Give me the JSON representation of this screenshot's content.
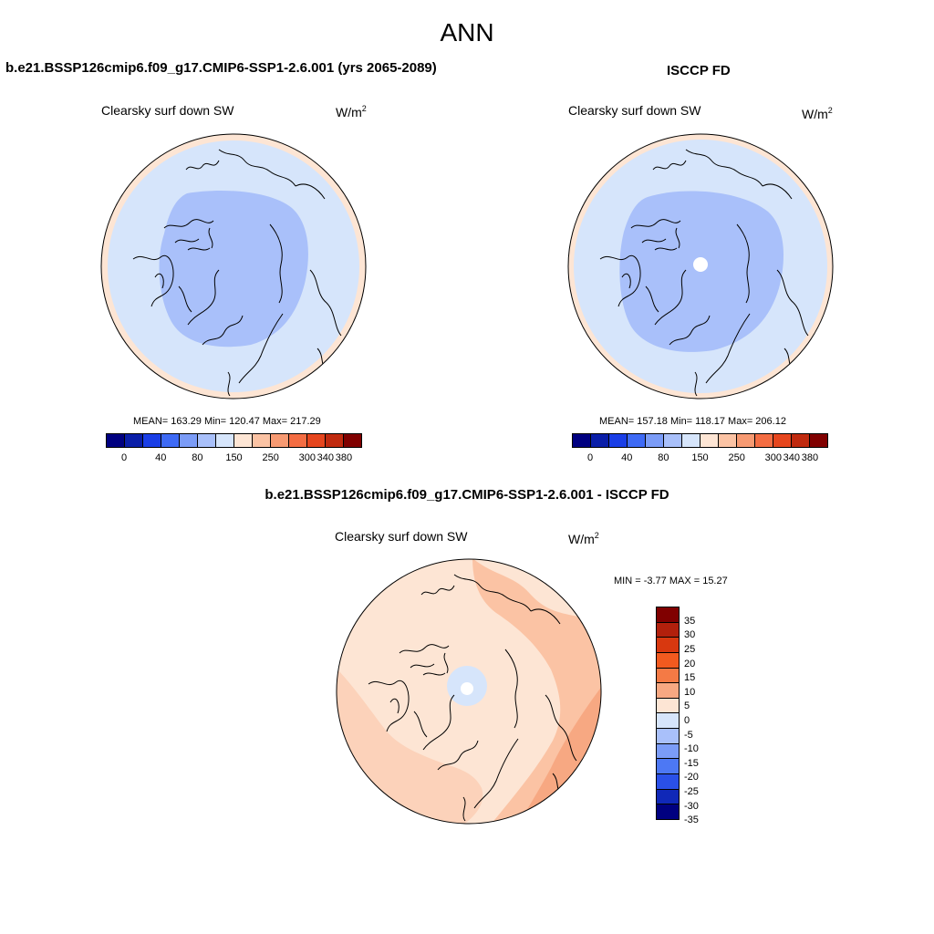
{
  "page": {
    "title": "ANN"
  },
  "colors": {
    "abs_levels": [
      "#000080",
      "#0a1ea8",
      "#1a3ee6",
      "#3e6af5",
      "#7b9cf7",
      "#a9c0fa",
      "#d6e5fb",
      "#fde5d4",
      "#fbc3a4",
      "#f79a72",
      "#f46d43",
      "#e6461e",
      "#c02a0f",
      "#800000"
    ],
    "diff_levels": [
      "#800000",
      "#b2200c",
      "#d8380f",
      "#f25a1f",
      "#f47a45",
      "#f7a882",
      "#fde5d4",
      "#d6e5fb",
      "#a9c0fa",
      "#7b9cf7",
      "#4d78f4",
      "#2a50e8",
      "#1028b8",
      "#000080"
    ]
  },
  "panels": {
    "model": {
      "title": "b.e21.BSSP126cmip6.f09_g17.CMIP6-SSP1-2.6.001 (yrs 2065-2089)",
      "variable": "Clearsky surf down SW",
      "unit_base": "W/m",
      "unit_exp": "2",
      "stats": "MEAN= 163.29  Min= 120.47  Max= 217.29"
    },
    "obs": {
      "title": "ISCCP FD",
      "variable": "Clearsky surf down SW",
      "unit_base": "W/m",
      "unit_exp": "2",
      "stats": "MEAN= 157.18  Min= 118.17  Max= 206.12"
    },
    "diff": {
      "title": "b.e21.BSSP126cmip6.f09_g17.CMIP6-SSP1-2.6.001 - ISCCP FD",
      "variable": "Clearsky surf down SW",
      "unit_base": "W/m",
      "unit_exp": "2",
      "stats": "MIN =  -3.77 MAX =  15.27"
    }
  },
  "colorbars": {
    "abs_ticks": [
      "0",
      "40",
      "80",
      "150",
      "250",
      "300",
      "340",
      "380"
    ],
    "diff_ticks": [
      "35",
      "30",
      "25",
      "20",
      "15",
      "10",
      "5",
      "0",
      "-5",
      "-10",
      "-15",
      "-20",
      "-25",
      "-30",
      "-35"
    ]
  }
}
